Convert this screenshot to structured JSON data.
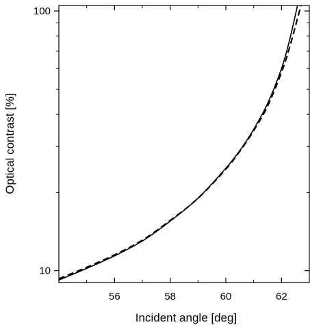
{
  "chart_data": {
    "type": "line",
    "title": "",
    "xlabel": "Incident angle [deg]",
    "ylabel": "Optical contrast [%]",
    "xlim": [
      54.0,
      63.0
    ],
    "ylim": [
      9.0,
      105.0
    ],
    "yscale": "log",
    "grid": false,
    "legend": "none",
    "xticks": [
      56,
      58,
      60,
      62
    ],
    "xtick_labels": [
      "56",
      "58",
      "60",
      "62"
    ],
    "yticks": [
      10,
      100
    ],
    "ytick_labels": [
      "10",
      "100"
    ],
    "series": [
      {
        "style": "solid",
        "color": "#000000",
        "x": [
          54.0,
          55.0,
          56.0,
          57.0,
          58.0,
          59.0,
          60.0,
          60.5,
          61.0,
          61.5,
          62.0,
          62.3,
          62.6
        ],
        "y": [
          9.2,
          10.2,
          11.4,
          13.0,
          15.5,
          19.0,
          24.8,
          29.0,
          35.0,
          44.0,
          60.0,
          78.0,
          108.0
        ]
      },
      {
        "style": "dashed",
        "color": "#000000",
        "x": [
          54.0,
          55.0,
          56.0,
          57.0,
          58.0,
          59.0,
          60.0,
          60.5,
          61.0,
          61.5,
          62.0,
          62.3,
          62.7
        ],
        "y": [
          9.3,
          10.3,
          11.5,
          13.1,
          15.6,
          19.0,
          24.6,
          28.8,
          34.6,
          43.0,
          58.0,
          73.0,
          105.0
        ]
      }
    ]
  }
}
